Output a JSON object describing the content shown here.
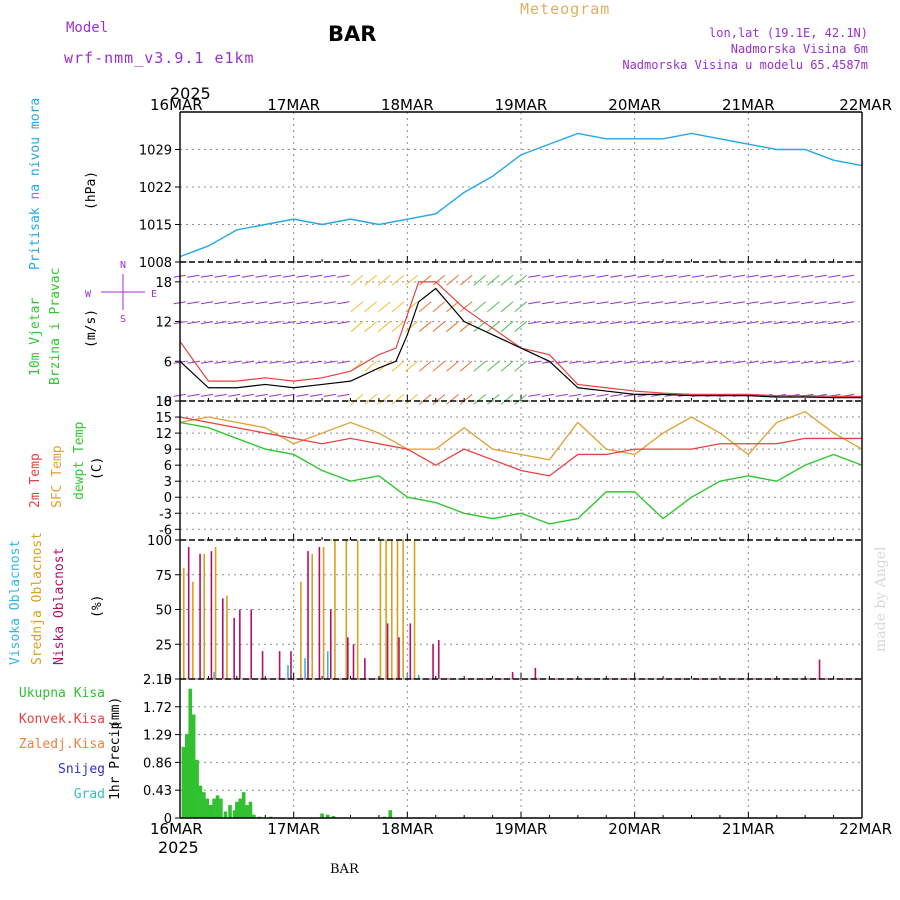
{
  "header": {
    "model_label": "Model",
    "model_name": "wrf-nmm_v3.9.1 e1km",
    "title": "BAR",
    "product": "Meteogram",
    "location": "lon,lat (19.1E, 42.1N)",
    "elevation": "Nadmorska Visina 6m",
    "model_elevation": "Nadmorska Visina u modelu 65.4587m",
    "year_top": "2025",
    "year_bottom": "2025",
    "footer": "BAR",
    "credit": "made by Angel"
  },
  "colors": {
    "pressure": "#22a8e8",
    "temp2m": "#e84040",
    "sfc": "#e0a030",
    "dewpt": "#30c830",
    "high_cloud": "#30b8e0",
    "mid_cloud": "#d8a020",
    "low_cloud": "#b0106a",
    "total_precip": "#30c030",
    "wind_label": "#30c030",
    "purple": "#9a30d0"
  },
  "chart_data": [
    {
      "type": "line",
      "ylabel": "Pritisak na nivou mora",
      "unit": "(hPa)",
      "ylim": [
        1008,
        1036
      ],
      "yticks": [
        "1008",
        "1015",
        "1022",
        "1029"
      ],
      "x_days": [
        0,
        0.25,
        0.5,
        0.75,
        1,
        1.25,
        1.5,
        1.75,
        2,
        2.25,
        2.5,
        2.75,
        3,
        3.25,
        3.5,
        3.75,
        4,
        4.25,
        4.5,
        4.75,
        5,
        5.25,
        5.5,
        5.75,
        6
      ],
      "series": [
        {
          "values": [
            1009,
            1011,
            1014,
            1015,
            1016,
            1015,
            1016,
            1015,
            1016,
            1017,
            1021,
            1024,
            1028,
            1030,
            1032,
            1031,
            1031,
            1031,
            1032,
            1031,
            1030,
            1029,
            1029,
            1027,
            1026
          ]
        }
      ]
    },
    {
      "type": "line",
      "ylabel": "10m Vjetar",
      "ylabel2": "Brzina i Pravac",
      "unit": "(m/s)",
      "ylim": [
        0,
        21
      ],
      "yticks": [
        "0",
        "6",
        "12",
        "18"
      ],
      "compass": {
        "top": "N",
        "left": "W",
        "right": "E",
        "bottom": "S"
      },
      "x_days": [
        0,
        0.25,
        0.5,
        0.75,
        1,
        1.25,
        1.5,
        1.75,
        1.9,
        2,
        2.1,
        2.25,
        2.5,
        2.75,
        3,
        3.25,
        3.5,
        3.75,
        4,
        4.25,
        4.5,
        4.75,
        5,
        5.25,
        5.5,
        5.75,
        6
      ],
      "series": [
        {
          "name": "speed",
          "values": [
            6,
            2,
            2,
            2.5,
            2,
            2.5,
            3,
            5,
            6,
            10,
            15,
            17,
            12,
            10,
            8,
            6,
            2,
            1.5,
            1,
            1,
            0.8,
            0.8,
            0.8,
            0.6,
            0.6,
            0.5,
            0.5
          ]
        },
        {
          "name": "gust",
          "values": [
            9,
            3,
            3,
            3.5,
            3,
            3.5,
            4.5,
            7,
            8,
            13,
            18,
            18,
            14,
            11,
            8,
            7,
            2.5,
            2,
            1.5,
            1.2,
            1,
            1,
            1,
            0.8,
            0.8,
            0.7,
            0.7
          ]
        }
      ]
    },
    {
      "type": "line",
      "unit": "(C)",
      "ylim": [
        -8,
        18
      ],
      "yticks": [
        "-6",
        "-3",
        "0",
        "3",
        "6",
        "9",
        "12",
        "15",
        "18"
      ],
      "x_days": [
        0,
        0.25,
        0.5,
        0.75,
        1,
        1.25,
        1.5,
        1.75,
        2,
        2.25,
        2.5,
        2.75,
        3,
        3.25,
        3.5,
        3.75,
        4,
        4.25,
        4.5,
        4.75,
        5,
        5.25,
        5.5,
        5.75,
        6
      ],
      "series": [
        {
          "name": "2m Temp",
          "values": [
            15,
            14,
            13,
            12,
            11,
            10,
            11,
            10,
            9,
            6,
            9,
            7,
            5,
            4,
            8,
            8,
            9,
            9,
            9,
            10,
            10,
            10,
            11,
            11,
            11
          ]
        },
        {
          "name": "SFC Temp",
          "values": [
            14,
            15,
            14,
            13,
            10,
            12,
            14,
            12,
            9,
            9,
            13,
            9,
            8,
            7,
            14,
            9,
            8,
            12,
            15,
            12,
            8,
            14,
            16,
            12,
            9
          ]
        },
        {
          "name": "dewpt Temp",
          "values": [
            14,
            13,
            11,
            9,
            8,
            5,
            3,
            4,
            0,
            -1,
            -3,
            -4,
            -3,
            -5,
            -4,
            1,
            1,
            -4,
            0,
            3,
            4,
            3,
            6,
            8,
            6
          ]
        }
      ]
    },
    {
      "type": "bar",
      "unit": "(%)",
      "ylim": [
        0,
        100
      ],
      "yticks": [
        "0",
        "25",
        "50",
        "75",
        "100"
      ],
      "series": [
        {
          "name": "Visoka Oblacnost",
          "x_days": [
            0.3,
            0.95,
            1.1,
            1.3,
            2.0,
            2.1
          ],
          "values": [
            5,
            10,
            15,
            20,
            4,
            3
          ]
        },
        {
          "name": "Srednja Oblacnost",
          "x_days": [
            0.02,
            0.1,
            0.2,
            0.3,
            0.4,
            1.05,
            1.15,
            1.25,
            1.35,
            1.45,
            1.55,
            1.75,
            1.8,
            1.85,
            1.9,
            1.95,
            2.05
          ],
          "values": [
            80,
            70,
            90,
            95,
            60,
            70,
            90,
            95,
            100,
            100,
            100,
            100,
            100,
            100,
            100,
            100,
            100
          ]
        },
        {
          "name": "Niska Oblacnost",
          "x_days": [
            0.05,
            0.15,
            0.25,
            0.35,
            0.45,
            0.5,
            0.6,
            0.7,
            0.85,
            0.95,
            1.1,
            1.2,
            1.3,
            1.45,
            1.5,
            1.6,
            1.8,
            1.9,
            2.0,
            2.2,
            2.25,
            2.9,
            3.1,
            5.6
          ],
          "values": [
            95,
            90,
            92,
            58,
            44,
            50,
            50,
            20,
            20,
            20,
            92,
            95,
            50,
            30,
            25,
            15,
            40,
            30,
            40,
            25,
            28,
            5,
            8,
            14
          ]
        }
      ]
    },
    {
      "type": "bar",
      "ylabel": "1hr Precip",
      "unit": "(mm)",
      "ylim": [
        0,
        2.15
      ],
      "yticks": [
        "0",
        "0.43",
        "0.86",
        "1.29",
        "1.72",
        "2.15"
      ],
      "legend": [
        "Ukupna Kisa",
        "Konvek.Kisa",
        "Zaledj.Kisa",
        "Snijeg",
        "Grad"
      ],
      "x_days": [
        0.03,
        0.06,
        0.09,
        0.12,
        0.15,
        0.18,
        0.21,
        0.24,
        0.27,
        0.3,
        0.33,
        0.36,
        0.4,
        0.44,
        0.48,
        0.5,
        0.53,
        0.56,
        0.59,
        0.62,
        0.65,
        0.7,
        0.8,
        1.25,
        1.3,
        1.35,
        1.8,
        1.85,
        2.0,
        2.1
      ],
      "values": [
        1.1,
        1.3,
        2.0,
        1.6,
        0.9,
        0.5,
        0.4,
        0.3,
        0.2,
        0.3,
        0.35,
        0.3,
        0.1,
        0.2,
        0.12,
        0.25,
        0.3,
        0.4,
        0.2,
        0.25,
        0.05,
        0.02,
        0.02,
        0.07,
        0.05,
        0.03,
        0.02,
        0.12,
        0.01,
        0.01
      ]
    }
  ],
  "x_axis": {
    "days": [
      "16MAR",
      "17MAR",
      "18MAR",
      "19MAR",
      "20MAR",
      "21MAR",
      "22MAR"
    ]
  }
}
